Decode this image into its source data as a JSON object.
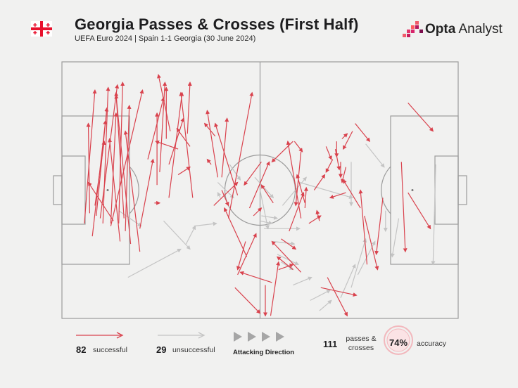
{
  "header": {
    "title": "Georgia Passes & Crosses (First Half)",
    "subtitle": "UEFA Euro 2024 | Spain 1-1 Georgia (30 June 2024)",
    "brand": "Opta",
    "brand_suffix": " Analyst"
  },
  "colors": {
    "successful": "#d9424d",
    "unsuccessful": "#c4c4c4",
    "pitch_lines": "#9b9b9b",
    "accuracy_ring": "#f2b8bd"
  },
  "legend": {
    "successful_count": "82",
    "successful_label": "successful",
    "unsuccessful_count": "29",
    "unsuccessful_label": "unsuccessful",
    "direction_label": "Attacking Direction",
    "total_count": "111",
    "total_label_1": "passes &",
    "total_label_2": "crosses",
    "accuracy_value": "74%",
    "accuracy_label": "accuracy"
  },
  "chart_data": {
    "type": "pass_map",
    "pitch": {
      "length": 100,
      "width": 100
    },
    "attacking_direction": "left-to-right",
    "counts": {
      "successful": 82,
      "unsuccessful": 29,
      "total": 111
    },
    "accuracy_pct": 74,
    "successful": [
      [
        17,
        63,
        25,
        11
      ],
      [
        26,
        60,
        34,
        18
      ],
      [
        31,
        63,
        35,
        10
      ],
      [
        29,
        61,
        42,
        9
      ],
      [
        21,
        59,
        20,
        24
      ],
      [
        25,
        56,
        32,
        31
      ],
      [
        23,
        68,
        33,
        23
      ],
      [
        37,
        64,
        61,
        11
      ],
      [
        37,
        63,
        41,
        20
      ],
      [
        39,
        62,
        20,
        47
      ],
      [
        43,
        63,
        46,
        8
      ],
      [
        47,
        61,
        41,
        12
      ],
      [
        44,
        70,
        36,
        30
      ],
      [
        48,
        66,
        51,
        17
      ],
      [
        52,
        71,
        41,
        13
      ],
      [
        59,
        74,
        48,
        27
      ],
      [
        59,
        65,
        69,
        38
      ],
      [
        70,
        55,
        74,
        55
      ],
      [
        72,
        48,
        72,
        20
      ],
      [
        74,
        43,
        78,
        8
      ],
      [
        65,
        38,
        77,
        14
      ],
      [
        81,
        53,
        91,
        12
      ],
      [
        99,
        53,
        90,
        12
      ],
      [
        88,
        34,
        71,
        31
      ],
      [
        79,
        30,
        79,
        10
      ],
      [
        95,
        28,
        97,
        8
      ],
      [
        82,
        27,
        73,
        5
      ],
      [
        81,
        40,
        92,
        22
      ],
      [
        97,
        33,
        87,
        26
      ],
      [
        88,
        44,
        97,
        41
      ],
      [
        113,
        40,
        110,
        38
      ],
      [
        116,
        29,
        108,
        24
      ],
      [
        118,
        45,
        110,
        19
      ],
      [
        121,
        45,
        125,
        22
      ],
      [
        121,
        50,
        126,
        56
      ],
      [
        126,
        61,
        144,
        12
      ],
      [
        145,
        60,
        151,
        57
      ],
      [
        160,
        55,
        151,
        48
      ],
      [
        151,
        39,
        138,
        48
      ],
      [
        175,
        31,
        159,
        39
      ],
      [
        176,
        31,
        182,
        35
      ],
      [
        181,
        35,
        177,
        56
      ],
      [
        181,
        61,
        171,
        31
      ],
      [
        184,
        57,
        185,
        49
      ],
      [
        184,
        55,
        178,
        44
      ],
      [
        187,
        63,
        196,
        60
      ],
      [
        195,
        62,
        193,
        58
      ],
      [
        142,
        57,
        157,
        39
      ],
      [
        133,
        52,
        116,
        24
      ],
      [
        115,
        56,
        133,
        47
      ],
      [
        140,
        76,
        123,
        57
      ],
      [
        139,
        70,
        133,
        81
      ],
      [
        133,
        83,
        147,
        67
      ],
      [
        159,
        86,
        135,
        82
      ],
      [
        131,
        88,
        150,
        98
      ],
      [
        154,
        87,
        154,
        99
      ],
      [
        158,
        99,
        164,
        78
      ],
      [
        164,
        81,
        175,
        79
      ],
      [
        166,
        69,
        177,
        73
      ],
      [
        172,
        66,
        183,
        51
      ],
      [
        175,
        81,
        163,
        76
      ],
      [
        181,
        82,
        159,
        70
      ],
      [
        200,
        33,
        204,
        38
      ],
      [
        208,
        31,
        208,
        37
      ],
      [
        212,
        30,
        216,
        28
      ],
      [
        220,
        27,
        213,
        34
      ],
      [
        222,
        24,
        233,
        31
      ],
      [
        262,
        16,
        281,
        27
      ],
      [
        262,
        51,
        279,
        65
      ],
      [
        201,
        84,
        216,
        99
      ],
      [
        196,
        88,
        223,
        91
      ],
      [
        226,
        57,
        213,
        46
      ],
      [
        229,
        60,
        239,
        81
      ],
      [
        231,
        79,
        226,
        50
      ],
      [
        243,
        53,
        238,
        75
      ],
      [
        257,
        39,
        260,
        74
      ],
      [
        207,
        34,
        210,
        42
      ],
      [
        215,
        41,
        212,
        47
      ],
      [
        211,
        39,
        211,
        45
      ],
      [
        205,
        38,
        200,
        43
      ],
      [
        191,
        50,
        199,
        44
      ],
      [
        215,
        51,
        203,
        53
      ]
    ],
    "unsuccessful": [
      [
        43,
        58,
        60,
        64
      ],
      [
        50,
        84,
        90,
        73
      ],
      [
        77,
        62,
        97,
        73
      ],
      [
        94,
        71,
        101,
        64
      ],
      [
        100,
        64,
        117,
        63
      ],
      [
        118,
        47,
        130,
        53
      ],
      [
        120,
        53,
        118,
        51
      ],
      [
        127,
        40,
        135,
        46
      ],
      [
        146,
        45,
        160,
        53
      ],
      [
        150,
        50,
        156,
        65
      ],
      [
        151,
        60,
        163,
        61
      ],
      [
        167,
        56,
        185,
        45
      ],
      [
        150,
        62,
        159,
        63
      ],
      [
        153,
        65,
        180,
        65
      ],
      [
        160,
        70,
        176,
        71
      ],
      [
        163,
        75,
        179,
        79
      ],
      [
        166,
        78,
        175,
        81
      ],
      [
        175,
        87,
        189,
        84
      ],
      [
        188,
        93,
        203,
        89
      ],
      [
        195,
        97,
        204,
        93
      ],
      [
        211,
        92,
        222,
        79
      ],
      [
        219,
        88,
        230,
        69
      ],
      [
        224,
        83,
        237,
        70
      ],
      [
        180,
        47,
        220,
        53
      ],
      [
        219,
        39,
        219,
        56
      ],
      [
        230,
        32,
        244,
        41
      ],
      [
        245,
        58,
        245,
        66
      ],
      [
        255,
        61,
        250,
        76
      ],
      [
        283,
        40,
        281,
        79
      ]
    ]
  }
}
